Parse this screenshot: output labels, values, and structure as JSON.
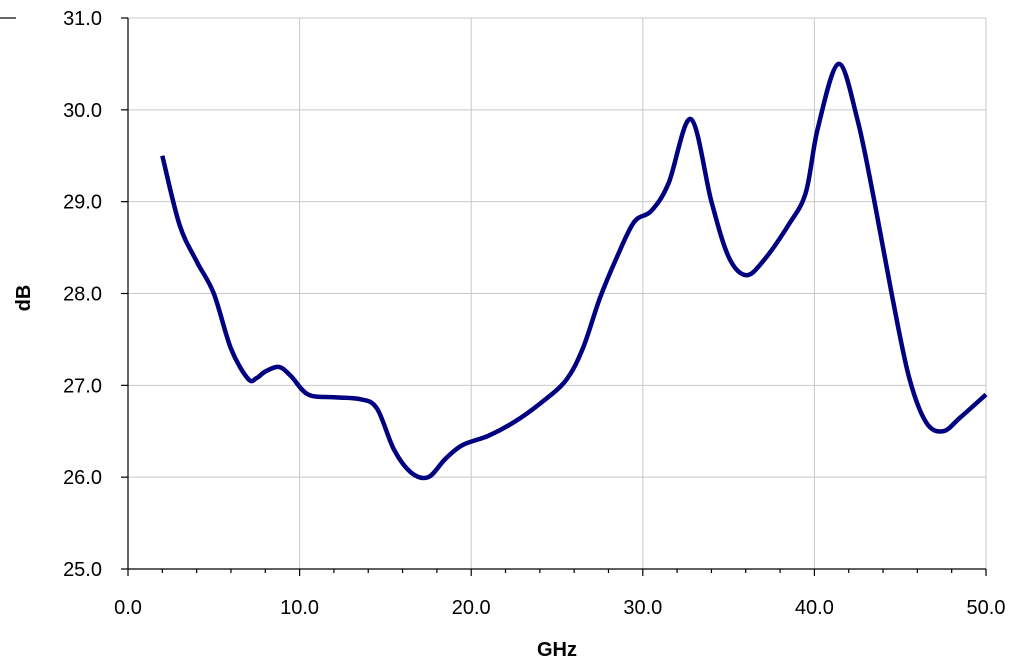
{
  "chart_data": {
    "type": "line",
    "title": "",
    "xlabel": "GHz",
    "ylabel": "dB",
    "xlim": [
      0,
      50
    ],
    "ylim": [
      25,
      31
    ],
    "grid": true,
    "legend": "none",
    "x_ticks": [
      "0.0",
      "10.0",
      "20.0",
      "30.0",
      "40.0",
      "50.0"
    ],
    "y_ticks": [
      "25.0",
      "26.0",
      "27.0",
      "28.0",
      "29.0",
      "30.0",
      "31.0"
    ],
    "series": [
      {
        "color": "#000080",
        "x": [
          2,
          3,
          4,
          5,
          6,
          7,
          7.5,
          8,
          8.8,
          9.5,
          10.5,
          12,
          13.5,
          14.5,
          15.5,
          16.5,
          17.5,
          18.5,
          19.5,
          21,
          22.5,
          24,
          25.5,
          26.5,
          27.5,
          28.5,
          29.5,
          30.5,
          31.5,
          32.8,
          34,
          35,
          36,
          37,
          38.5,
          39.5,
          40.2,
          41.4,
          42.5,
          43.5,
          44.5,
          45.5,
          46.5,
          47.5,
          48.5,
          50
        ],
        "y": [
          29.5,
          28.75,
          28.35,
          28.0,
          27.4,
          27.07,
          27.08,
          27.15,
          27.2,
          27.1,
          26.9,
          26.87,
          26.85,
          26.75,
          26.3,
          26.05,
          26.0,
          26.2,
          26.35,
          26.45,
          26.6,
          26.8,
          27.05,
          27.4,
          27.95,
          28.4,
          28.78,
          28.9,
          29.2,
          29.9,
          29.0,
          28.4,
          28.2,
          28.35,
          28.75,
          29.1,
          29.8,
          30.5,
          29.9,
          29.0,
          28.0,
          27.1,
          26.6,
          26.5,
          26.65,
          26.9
        ]
      }
    ]
  }
}
